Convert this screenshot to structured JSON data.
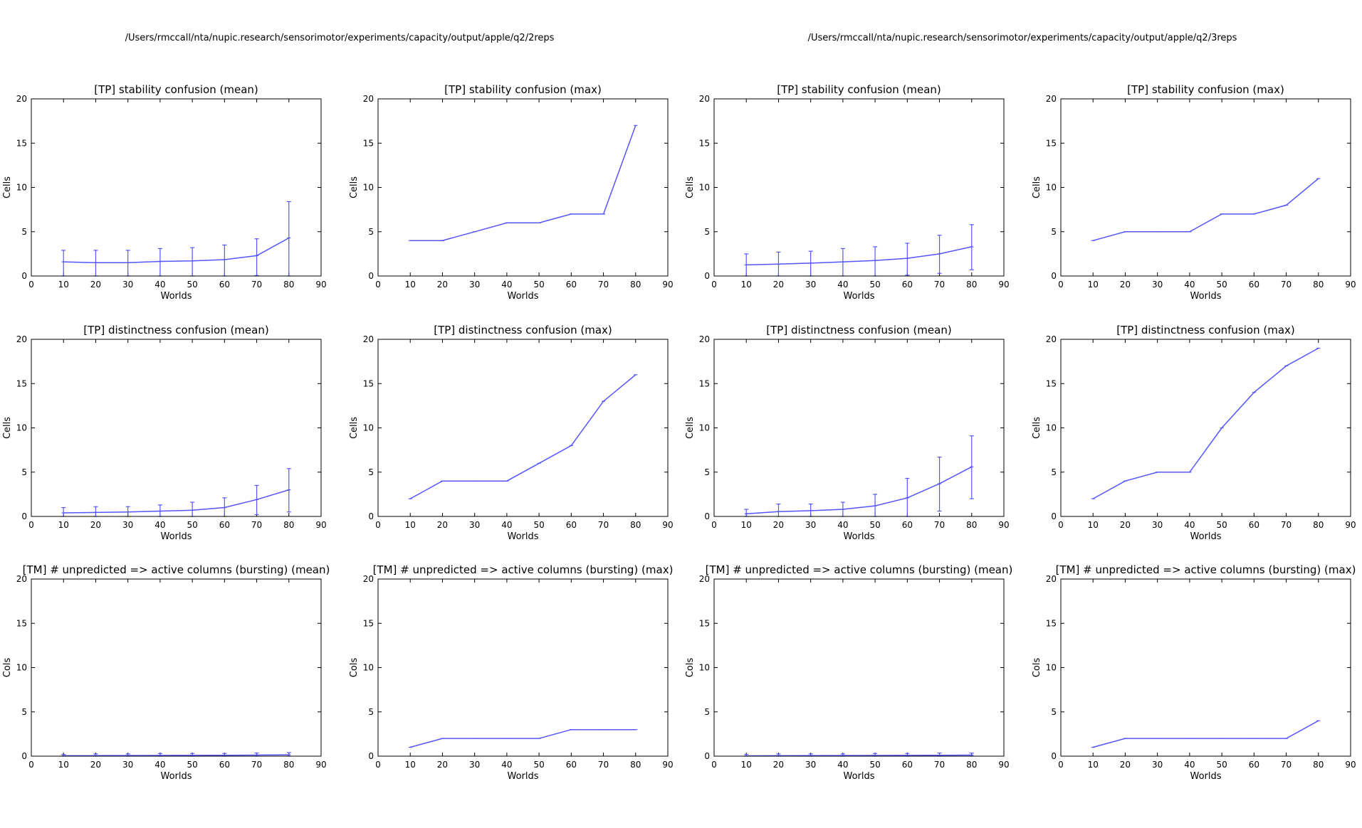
{
  "figure": {
    "colors": {
      "line": "#5555ff",
      "frame": "#000000",
      "background": "#ffffff"
    },
    "column_titles": [
      "/Users/rmccall/nta/nupic.research/sensorimotor/experiments/capacity/output/apple/q2/2reps",
      "/Users/rmccall/nta/nupic.research/sensorimotor/experiments/capacity/output/apple/q2/3reps"
    ]
  },
  "chart_data": [
    {
      "type": "line",
      "title": "[TP] stability confusion (mean)",
      "xlabel": "Worlds",
      "ylabel": "Cells",
      "xlim": [
        0,
        90
      ],
      "ylim": [
        0,
        20
      ],
      "xticks": [
        0,
        10,
        20,
        30,
        40,
        50,
        60,
        70,
        80,
        90
      ],
      "yticks": [
        0,
        5,
        10,
        15,
        20
      ],
      "x": [
        10,
        20,
        30,
        40,
        50,
        60,
        70,
        80
      ],
      "y": [
        1.6,
        1.5,
        1.5,
        1.65,
        1.7,
        1.85,
        2.3,
        4.3
      ],
      "error_low": [
        0,
        0,
        0,
        0,
        0,
        0,
        0.05,
        0
      ],
      "error_high": [
        2.9,
        2.9,
        2.9,
        3.1,
        3.2,
        3.5,
        4.2,
        8.4
      ]
    },
    {
      "type": "line",
      "title": "[TP] stability confusion (max)",
      "xlabel": "Worlds",
      "ylabel": "Cells",
      "xlim": [
        0,
        90
      ],
      "ylim": [
        0,
        20
      ],
      "xticks": [
        0,
        10,
        20,
        30,
        40,
        50,
        60,
        70,
        80,
        90
      ],
      "yticks": [
        0,
        5,
        10,
        15,
        20
      ],
      "x": [
        10,
        20,
        30,
        40,
        50,
        60,
        70,
        80
      ],
      "y": [
        4,
        4,
        5,
        6,
        6,
        7,
        7,
        17
      ]
    },
    {
      "type": "line",
      "title": "[TP] stability confusion (mean)",
      "xlabel": "Worlds",
      "ylabel": "Cells",
      "xlim": [
        0,
        90
      ],
      "ylim": [
        0,
        20
      ],
      "xticks": [
        0,
        10,
        20,
        30,
        40,
        50,
        60,
        70,
        80,
        90
      ],
      "yticks": [
        0,
        5,
        10,
        15,
        20
      ],
      "x": [
        10,
        20,
        30,
        40,
        50,
        60,
        70,
        80
      ],
      "y": [
        1.25,
        1.35,
        1.45,
        1.6,
        1.75,
        2.0,
        2.5,
        3.3
      ],
      "error_low": [
        0,
        0,
        0,
        0,
        0,
        0.1,
        0.3,
        0.7
      ],
      "error_high": [
        2.5,
        2.7,
        2.8,
        3.1,
        3.3,
        3.7,
        4.6,
        5.8
      ]
    },
    {
      "type": "line",
      "title": "[TP] stability confusion (max)",
      "xlabel": "Worlds",
      "ylabel": "Cells",
      "xlim": [
        0,
        90
      ],
      "ylim": [
        0,
        20
      ],
      "xticks": [
        0,
        10,
        20,
        30,
        40,
        50,
        60,
        70,
        80,
        90
      ],
      "yticks": [
        0,
        5,
        10,
        15,
        20
      ],
      "x": [
        10,
        20,
        30,
        40,
        50,
        60,
        70,
        80
      ],
      "y": [
        4,
        5,
        5,
        5,
        7,
        7,
        8,
        11
      ]
    },
    {
      "type": "line",
      "title": "[TP] distinctness confusion (mean)",
      "xlabel": "Worlds",
      "ylabel": "Cells",
      "xlim": [
        0,
        90
      ],
      "ylim": [
        0,
        20
      ],
      "xticks": [
        0,
        10,
        20,
        30,
        40,
        50,
        60,
        70,
        80,
        90
      ],
      "yticks": [
        0,
        5,
        10,
        15,
        20
      ],
      "x": [
        10,
        20,
        30,
        40,
        50,
        60,
        70,
        80
      ],
      "y": [
        0.4,
        0.45,
        0.5,
        0.6,
        0.7,
        1.0,
        1.9,
        3.0
      ],
      "error_low": [
        0,
        0,
        0,
        0,
        0,
        0,
        0.2,
        0.5
      ],
      "error_high": [
        1.0,
        1.1,
        1.1,
        1.3,
        1.6,
        2.1,
        3.5,
        5.4
      ]
    },
    {
      "type": "line",
      "title": "[TP] distinctness confusion (max)",
      "xlabel": "Worlds",
      "ylabel": "Cells",
      "xlim": [
        0,
        90
      ],
      "ylim": [
        0,
        20
      ],
      "xticks": [
        0,
        10,
        20,
        30,
        40,
        50,
        60,
        70,
        80,
        90
      ],
      "yticks": [
        0,
        5,
        10,
        15,
        20
      ],
      "x": [
        10,
        20,
        30,
        40,
        50,
        60,
        70,
        80
      ],
      "y": [
        2,
        4,
        4,
        4,
        6,
        8,
        13,
        16
      ]
    },
    {
      "type": "line",
      "title": "[TP] distinctness confusion (mean)",
      "xlabel": "Worlds",
      "ylabel": "Cells",
      "xlim": [
        0,
        90
      ],
      "ylim": [
        0,
        20
      ],
      "xticks": [
        0,
        10,
        20,
        30,
        40,
        50,
        60,
        70,
        80,
        90
      ],
      "yticks": [
        0,
        5,
        10,
        15,
        20
      ],
      "x": [
        10,
        20,
        30,
        40,
        50,
        60,
        70,
        80
      ],
      "y": [
        0.3,
        0.55,
        0.65,
        0.8,
        1.2,
        2.1,
        3.7,
        5.6
      ],
      "error_low": [
        0,
        0,
        0,
        0,
        0,
        0,
        0.6,
        2.0
      ],
      "error_high": [
        0.8,
        1.4,
        1.4,
        1.6,
        2.5,
        4.3,
        6.7,
        9.1
      ]
    },
    {
      "type": "line",
      "title": "[TP] distinctness confusion (max)",
      "xlabel": "Worlds",
      "ylabel": "Cells",
      "xlim": [
        0,
        90
      ],
      "ylim": [
        0,
        20
      ],
      "xticks": [
        0,
        10,
        20,
        30,
        40,
        50,
        60,
        70,
        80,
        90
      ],
      "yticks": [
        0,
        5,
        10,
        15,
        20
      ],
      "x": [
        10,
        20,
        30,
        40,
        50,
        60,
        70,
        80
      ],
      "y": [
        2,
        4,
        5,
        5,
        10,
        14,
        17,
        19
      ]
    },
    {
      "type": "line",
      "title": "[TM] # unpredicted => active columns (bursting) (mean)",
      "xlabel": "Worlds",
      "ylabel": "Cols",
      "xlim": [
        0,
        90
      ],
      "ylim": [
        0,
        20
      ],
      "xticks": [
        0,
        10,
        20,
        30,
        40,
        50,
        60,
        70,
        80,
        90
      ],
      "yticks": [
        0,
        5,
        10,
        15,
        20
      ],
      "x": [
        10,
        20,
        30,
        40,
        50,
        60,
        70,
        80
      ],
      "y": [
        0.05,
        0.06,
        0.07,
        0.08,
        0.09,
        0.1,
        0.12,
        0.15
      ],
      "error_low": [
        0,
        0,
        0,
        0,
        0,
        0,
        0,
        0
      ],
      "error_high": [
        0.2,
        0.25,
        0.25,
        0.3,
        0.3,
        0.3,
        0.35,
        0.4
      ]
    },
    {
      "type": "line",
      "title": "[TM] # unpredicted => active columns (bursting) (max)",
      "xlabel": "Worlds",
      "ylabel": "Cols",
      "xlim": [
        0,
        90
      ],
      "ylim": [
        0,
        20
      ],
      "xticks": [
        0,
        10,
        20,
        30,
        40,
        50,
        60,
        70,
        80,
        90
      ],
      "yticks": [
        0,
        5,
        10,
        15,
        20
      ],
      "x": [
        10,
        20,
        30,
        40,
        50,
        60,
        70,
        80
      ],
      "y": [
        1,
        2,
        2,
        2,
        2,
        3,
        3,
        3
      ]
    },
    {
      "type": "line",
      "title": "[TM] # unpredicted => active columns (bursting) (mean)",
      "xlabel": "Worlds",
      "ylabel": "Cols",
      "xlim": [
        0,
        90
      ],
      "ylim": [
        0,
        20
      ],
      "xticks": [
        0,
        10,
        20,
        30,
        40,
        50,
        60,
        70,
        80,
        90
      ],
      "yticks": [
        0,
        5,
        10,
        15,
        20
      ],
      "x": [
        10,
        20,
        30,
        40,
        50,
        60,
        70,
        80
      ],
      "y": [
        0.03,
        0.05,
        0.06,
        0.07,
        0.08,
        0.09,
        0.1,
        0.12
      ],
      "error_low": [
        0,
        0,
        0,
        0,
        0,
        0,
        0,
        0
      ],
      "error_high": [
        0.2,
        0.25,
        0.25,
        0.25,
        0.3,
        0.3,
        0.35,
        0.35
      ]
    },
    {
      "type": "line",
      "title": "[TM] # unpredicted => active columns (bursting) (max)",
      "xlabel": "Worlds",
      "ylabel": "Cols",
      "xlim": [
        0,
        90
      ],
      "ylim": [
        0,
        20
      ],
      "xticks": [
        0,
        10,
        20,
        30,
        40,
        50,
        60,
        70,
        80,
        90
      ],
      "yticks": [
        0,
        5,
        10,
        15,
        20
      ],
      "x": [
        10,
        20,
        30,
        40,
        50,
        60,
        70,
        80
      ],
      "y": [
        1,
        2,
        2,
        2,
        2,
        2,
        2,
        4
      ]
    }
  ]
}
